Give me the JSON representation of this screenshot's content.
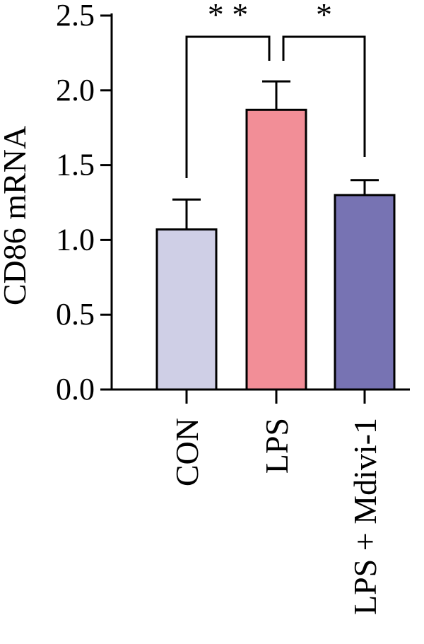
{
  "chart_data": {
    "type": "bar",
    "title": "",
    "xlabel": "",
    "ylabel": "CD86 mRNA",
    "ylim": [
      0,
      2.5
    ],
    "yticks": [
      0.0,
      0.5,
      1.0,
      1.5,
      2.0,
      2.5
    ],
    "ytick_labels": [
      "0.0",
      "0.5",
      "1.0",
      "1.5",
      "2.0",
      "2.5"
    ],
    "categories": [
      "CON",
      "LPS",
      "LPS + Mdivi-1"
    ],
    "values": [
      1.07,
      1.87,
      1.3
    ],
    "errors": [
      0.2,
      0.19,
      0.1
    ],
    "colors": [
      "#cfcfe6",
      "#f28e97",
      "#7773b3"
    ],
    "grid": false,
    "legend": "none",
    "significance": [
      {
        "from": 0,
        "to": 1,
        "label": "* *"
      },
      {
        "from": 1,
        "to": 2,
        "label": "*"
      }
    ]
  }
}
